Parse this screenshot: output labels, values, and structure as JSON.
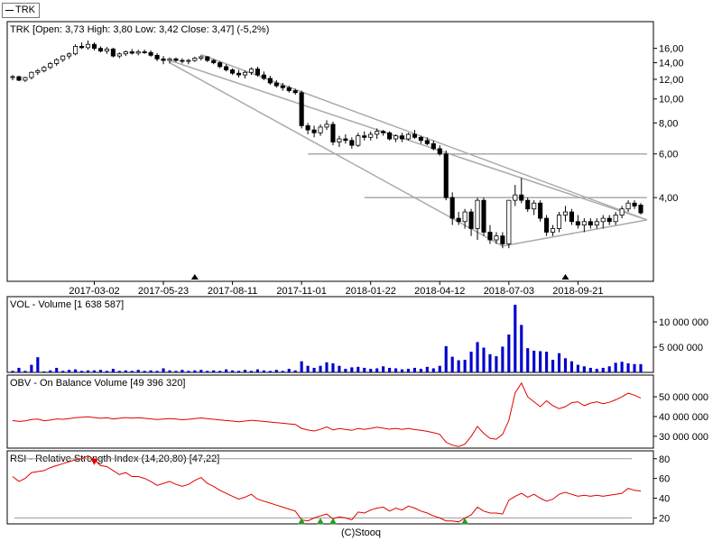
{
  "legend": {
    "label": "TRK"
  },
  "copyright": "(C)Stooq",
  "chart_data": [
    {
      "type": "candlestick",
      "title": "TRK [Open: 3,73  High: 3,80  Low: 3,42  Close: 3,47] (-5,2%)",
      "y_scale": "log",
      "ylim": [
        1.9,
        19.5
      ],
      "y_ticks": [
        {
          "value": 4,
          "label": "4,00"
        },
        {
          "value": 6,
          "label": "6,00"
        },
        {
          "value": 8,
          "label": "8,00"
        },
        {
          "value": 10,
          "label": "10,00"
        },
        {
          "value": 12,
          "label": "12,00"
        },
        {
          "value": 14,
          "label": "14,00"
        },
        {
          "value": 16,
          "label": "16,00"
        }
      ],
      "x_labels": [
        {
          "i": 13,
          "label": "2017-03-02"
        },
        {
          "i": 24,
          "label": "2017-05-23"
        },
        {
          "i": 35,
          "label": "2017-08-11"
        },
        {
          "i": 46,
          "label": "2017-11-01"
        },
        {
          "i": 57,
          "label": "2018-01-22"
        },
        {
          "i": 68,
          "label": "2018-04-12"
        },
        {
          "i": 79,
          "label": "2018-07-03"
        },
        {
          "i": 90,
          "label": "2018-09-21"
        }
      ],
      "x_count": 101,
      "candles": [
        [
          12.2,
          12.5,
          11.9,
          12.3
        ],
        [
          12.3,
          12.4,
          11.8,
          11.9
        ],
        [
          11.9,
          12.3,
          11.7,
          12.2
        ],
        [
          12.2,
          12.9,
          12.0,
          12.8
        ],
        [
          12.8,
          13.2,
          12.5,
          13.0
        ],
        [
          13.0,
          13.6,
          12.8,
          13.4
        ],
        [
          13.4,
          14.1,
          13.2,
          13.9
        ],
        [
          13.9,
          14.6,
          13.6,
          14.4
        ],
        [
          14.4,
          15.0,
          14.1,
          14.9
        ],
        [
          14.9,
          15.4,
          14.5,
          15.2
        ],
        [
          15.2,
          16.6,
          15.0,
          16.3
        ],
        [
          16.3,
          16.9,
          15.9,
          16.1
        ],
        [
          16.1,
          17.2,
          15.8,
          16.6
        ],
        [
          16.6,
          16.9,
          15.7,
          16.0
        ],
        [
          16.0,
          16.3,
          15.4,
          15.6
        ],
        [
          15.6,
          16.2,
          15.2,
          15.9
        ],
        [
          15.9,
          16.1,
          14.7,
          14.9
        ],
        [
          14.9,
          15.4,
          14.6,
          15.2
        ],
        [
          15.2,
          15.7,
          14.9,
          15.5
        ],
        [
          15.5,
          15.9,
          15.1,
          15.3
        ],
        [
          15.3,
          15.8,
          15.0,
          15.5
        ],
        [
          15.5,
          15.8,
          15.2,
          15.4
        ],
        [
          15.4,
          15.7,
          14.8,
          15.0
        ],
        [
          15.0,
          15.3,
          14.2,
          14.5
        ],
        [
          14.5,
          14.9,
          13.8,
          14.3
        ],
        [
          14.3,
          14.7,
          13.9,
          14.5
        ],
        [
          14.5,
          14.7,
          14.1,
          14.3
        ],
        [
          14.3,
          14.6,
          13.9,
          14.2
        ],
        [
          14.2,
          14.5,
          13.8,
          14.3
        ],
        [
          14.3,
          14.8,
          14.1,
          14.6
        ],
        [
          14.6,
          15.0,
          14.3,
          14.8
        ],
        [
          14.8,
          14.9,
          14.1,
          14.3
        ],
        [
          14.3,
          14.5,
          13.8,
          14.0
        ],
        [
          14.0,
          14.2,
          13.3,
          13.5
        ],
        [
          13.5,
          13.8,
          12.9,
          13.1
        ],
        [
          13.1,
          13.3,
          12.5,
          12.7
        ],
        [
          12.7,
          13.1,
          12.2,
          12.5
        ],
        [
          12.5,
          13.0,
          12.1,
          12.8
        ],
        [
          12.8,
          13.4,
          12.5,
          13.2
        ],
        [
          13.2,
          13.5,
          12.3,
          12.5
        ],
        [
          12.5,
          12.9,
          11.9,
          12.1
        ],
        [
          12.1,
          12.4,
          11.4,
          11.6
        ],
        [
          11.6,
          11.9,
          11.1,
          11.3
        ],
        [
          11.3,
          11.6,
          10.8,
          11.1
        ],
        [
          11.1,
          11.3,
          10.6,
          10.8
        ],
        [
          10.8,
          11.0,
          10.4,
          10.6
        ],
        [
          10.6,
          10.8,
          7.6,
          7.8
        ],
        [
          7.8,
          8.0,
          7.2,
          7.5
        ],
        [
          7.5,
          7.8,
          7.0,
          7.3
        ],
        [
          7.3,
          7.9,
          7.1,
          7.7
        ],
        [
          7.7,
          8.2,
          7.5,
          7.9
        ],
        [
          7.9,
          8.1,
          6.5,
          6.7
        ],
        [
          6.7,
          7.1,
          6.4,
          6.9
        ],
        [
          6.9,
          7.2,
          6.6,
          6.8
        ],
        [
          6.8,
          7.0,
          6.3,
          6.5
        ],
        [
          6.5,
          7.3,
          6.4,
          7.1
        ],
        [
          7.1,
          7.4,
          6.8,
          7.0
        ],
        [
          7.0,
          7.4,
          6.8,
          7.2
        ],
        [
          7.2,
          7.6,
          6.9,
          7.4
        ],
        [
          7.4,
          7.5,
          7.1,
          7.3
        ],
        [
          7.3,
          7.4,
          6.8,
          6.9
        ],
        [
          6.9,
          7.2,
          6.7,
          7.1
        ],
        [
          7.1,
          7.3,
          6.7,
          6.9
        ],
        [
          6.9,
          7.3,
          6.8,
          7.2
        ],
        [
          7.2,
          7.5,
          6.9,
          7.0
        ],
        [
          7.0,
          7.1,
          6.6,
          6.8
        ],
        [
          6.8,
          7.0,
          6.5,
          6.6
        ],
        [
          6.6,
          6.8,
          6.2,
          6.3
        ],
        [
          6.3,
          6.5,
          5.9,
          6.0
        ],
        [
          6.0,
          6.2,
          3.9,
          4.0
        ],
        [
          4.0,
          4.2,
          3.1,
          3.3
        ],
        [
          3.3,
          3.5,
          3.1,
          3.2
        ],
        [
          3.2,
          3.6,
          3.0,
          3.5
        ],
        [
          3.5,
          3.6,
          2.8,
          3.0
        ],
        [
          3.0,
          4.0,
          2.7,
          3.9
        ],
        [
          3.9,
          4.0,
          2.8,
          2.9
        ],
        [
          2.9,
          3.1,
          2.6,
          2.7
        ],
        [
          2.7,
          2.9,
          2.6,
          2.8
        ],
        [
          2.8,
          2.9,
          2.5,
          2.6
        ],
        [
          2.6,
          3.9,
          2.5,
          3.9
        ],
        [
          3.9,
          4.5,
          3.7,
          4.1
        ],
        [
          4.1,
          4.8,
          3.8,
          3.9
        ],
        [
          3.9,
          4.0,
          3.5,
          3.6
        ],
        [
          3.6,
          3.9,
          3.4,
          3.8
        ],
        [
          3.8,
          3.9,
          3.2,
          3.3
        ],
        [
          3.3,
          3.4,
          2.8,
          2.9
        ],
        [
          2.9,
          3.1,
          2.8,
          3.0
        ],
        [
          3.0,
          3.5,
          2.9,
          3.4
        ],
        [
          3.4,
          3.7,
          3.2,
          3.5
        ],
        [
          3.5,
          3.6,
          3.1,
          3.2
        ],
        [
          3.2,
          3.4,
          3.0,
          3.1
        ],
        [
          3.1,
          3.3,
          2.9,
          3.2
        ],
        [
          3.2,
          3.3,
          3.0,
          3.1
        ],
        [
          3.1,
          3.3,
          3.0,
          3.2
        ],
        [
          3.2,
          3.4,
          3.0,
          3.3
        ],
        [
          3.3,
          3.4,
          3.1,
          3.2
        ],
        [
          3.2,
          3.5,
          3.1,
          3.4
        ],
        [
          3.4,
          3.7,
          3.3,
          3.6
        ],
        [
          3.6,
          3.9,
          3.5,
          3.8
        ],
        [
          3.8,
          3.9,
          3.6,
          3.7
        ],
        [
          3.73,
          3.8,
          3.42,
          3.47
        ]
      ],
      "annotations": {
        "trend_lines": [
          {
            "from": [
              25,
              14.3
            ],
            "to": [
              101,
              3.25
            ]
          },
          {
            "from": [
              30,
              15.1
            ],
            "to": [
              101,
              3.25
            ]
          },
          {
            "from": [
              78,
              2.55
            ],
            "to": [
              101,
              3.25
            ]
          },
          {
            "from": [
              25,
              14.0
            ],
            "to": [
              78,
              2.55
            ]
          }
        ],
        "horizontal_lines": [
          {
            "value": 6.0,
            "from": 47,
            "to": 101
          },
          {
            "value": 4.0,
            "from": 56,
            "to": 101
          }
        ],
        "markers_up": [
          {
            "i": 29
          },
          {
            "i": 88
          }
        ]
      }
    },
    {
      "type": "bar",
      "title": "VOL - Volume [1 638 587]",
      "ylim": [
        0,
        15000000
      ],
      "y_ticks": [
        {
          "value": 5000000,
          "label": "5 000 000"
        },
        {
          "value": 10000000,
          "label": "10 000 000"
        }
      ],
      "values": [
        300000,
        900000,
        300000,
        1500000,
        3000000,
        200000,
        400000,
        900000,
        300000,
        500000,
        600000,
        300000,
        400000,
        400000,
        500000,
        300000,
        700000,
        300000,
        400000,
        300000,
        500000,
        300000,
        400000,
        300000,
        800000,
        400000,
        300000,
        500000,
        300000,
        400000,
        500000,
        300000,
        400000,
        300000,
        600000,
        400000,
        300000,
        500000,
        300000,
        600000,
        400000,
        300000,
        500000,
        300000,
        700000,
        400000,
        2200000,
        1300000,
        900000,
        1300000,
        2000000,
        1800000,
        1300000,
        700000,
        1000000,
        1100000,
        900000,
        700000,
        800000,
        1200000,
        900000,
        800000,
        600000,
        700000,
        900000,
        700000,
        1100000,
        800000,
        1300000,
        5200000,
        3100000,
        2400000,
        2500000,
        4100000,
        6000000,
        4900000,
        3600000,
        3200000,
        5100000,
        7500000,
        13400000,
        9400000,
        4800000,
        4300000,
        4200000,
        4100000,
        2500000,
        3800000,
        2800000,
        2200000,
        1500000,
        1200000,
        900000,
        700000,
        900000,
        1200000,
        1900000,
        2100000,
        1800000,
        1640000,
        1638587
      ]
    },
    {
      "type": "line",
      "title": "OBV - On Balance Volume [49 396 320]",
      "ylim": [
        24000000,
        61000000
      ],
      "y_ticks": [
        {
          "value": 30000000,
          "label": "30 000 000"
        },
        {
          "value": 40000000,
          "label": "40 000 000"
        },
        {
          "value": 50000000,
          "label": "50 000 000"
        }
      ],
      "values": [
        38000000,
        37500000,
        37800000,
        38500000,
        38700000,
        37900000,
        38200000,
        38800000,
        38600000,
        39000000,
        39400000,
        39600000,
        39900000,
        39500000,
        39100000,
        39400000,
        38800000,
        39100000,
        39500000,
        39200000,
        39400000,
        39100000,
        38800000,
        38500000,
        38700000,
        39000000,
        38700000,
        38400000,
        38600000,
        39000000,
        39300000,
        38900000,
        38600000,
        38300000,
        38000000,
        37700000,
        37400000,
        37700000,
        38100000,
        37800000,
        37500000,
        37200000,
        36900000,
        36600000,
        36300000,
        36000000,
        34000000,
        33200000,
        32700000,
        33500000,
        34800000,
        33200000,
        33900000,
        33500000,
        33000000,
        34000000,
        33500000,
        34000000,
        34600000,
        34100000,
        33600000,
        34000000,
        33500000,
        34000000,
        33400000,
        33000000,
        32500000,
        31800000,
        31000000,
        27000000,
        25500000,
        24800000,
        26000000,
        30000000,
        35000000,
        31500000,
        29000000,
        28500000,
        31000000,
        38000000,
        52000000,
        57000000,
        50000000,
        47500000,
        45000000,
        48000000,
        45500000,
        44000000,
        45000000,
        47000000,
        47500000,
        45500000,
        46800000,
        47500000,
        46500000,
        47200000,
        48500000,
        50000000,
        51800000,
        50800000,
        49396320
      ]
    },
    {
      "type": "line",
      "title": "RSI - Relative Strength Index (14,20,80) [47,22]",
      "ylim": [
        14,
        88
      ],
      "y_ticks": [
        {
          "value": 20,
          "label": "20"
        },
        {
          "value": 40,
          "label": "40"
        },
        {
          "value": 60,
          "label": "60"
        },
        {
          "value": 80,
          "label": "80"
        }
      ],
      "reference_lines": [
        20,
        80
      ],
      "values": [
        62,
        57,
        60,
        66,
        67,
        68,
        71,
        73,
        75,
        77,
        79,
        80,
        83,
        79,
        73,
        72,
        68,
        64,
        66,
        62,
        62,
        60,
        57,
        53,
        55,
        57,
        54,
        52,
        54,
        58,
        61,
        55,
        52,
        48,
        45,
        42,
        39,
        41,
        44,
        39,
        37,
        35,
        33,
        31,
        29,
        27,
        18,
        17,
        20,
        22,
        24,
        19,
        21,
        20,
        18,
        26,
        25,
        28,
        30,
        31,
        27,
        30,
        28,
        32,
        30,
        27,
        25,
        22,
        20,
        17,
        17,
        16,
        20,
        23,
        31,
        27,
        25,
        25,
        24,
        38,
        42,
        45,
        41,
        44,
        40,
        37,
        39,
        44,
        46,
        44,
        42,
        43,
        42,
        43,
        42,
        43,
        44,
        45,
        50,
        48,
        47.22
      ],
      "markers": {
        "down": [
          {
            "i": 13,
            "value": 80
          }
        ],
        "up": [
          {
            "i": 46,
            "value": 20
          },
          {
            "i": 49,
            "value": 20
          },
          {
            "i": 51,
            "value": 20
          },
          {
            "i": 72,
            "value": 20
          }
        ]
      }
    }
  ]
}
